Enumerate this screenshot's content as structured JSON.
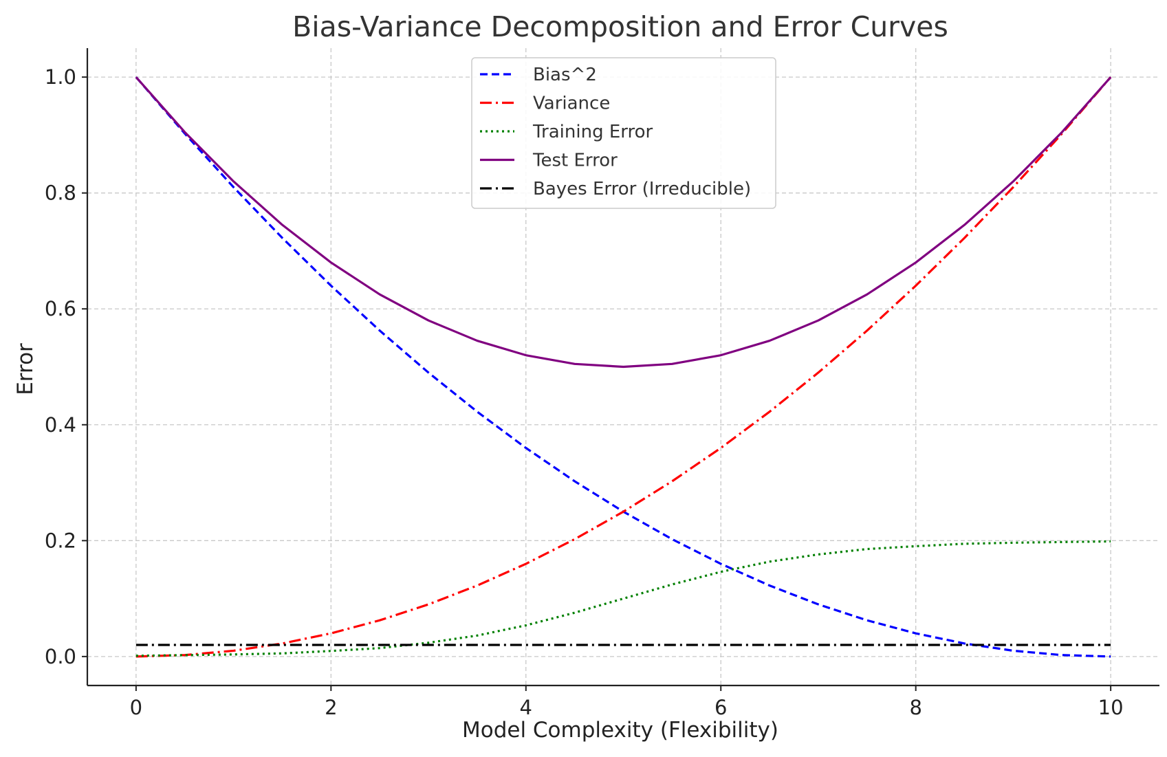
{
  "chart_data": {
    "type": "line",
    "title": "Bias-Variance Decomposition and Error Curves",
    "xlabel": "Model Complexity (Flexibility)",
    "ylabel": "Error",
    "xlim": [
      -0.5,
      10.5
    ],
    "ylim": [
      -0.05,
      1.05
    ],
    "xticks": [
      0,
      2,
      4,
      6,
      8,
      10
    ],
    "yticks": [
      0.0,
      0.2,
      0.4,
      0.6,
      0.8,
      1.0
    ],
    "xtick_labels": [
      "0",
      "2",
      "4",
      "6",
      "8",
      "10"
    ],
    "ytick_labels": [
      "0.0",
      "0.2",
      "0.4",
      "0.6",
      "0.8",
      "1.0"
    ],
    "grid": true,
    "legend_position": "top-center",
    "x": [
      0,
      0.5,
      1,
      1.5,
      2,
      2.5,
      3,
      3.5,
      4,
      4.5,
      5,
      5.5,
      6,
      6.5,
      7,
      7.5,
      8,
      8.5,
      9,
      9.5,
      10
    ],
    "series": [
      {
        "name": "Bias^2",
        "color": "#0000ff",
        "style": "dashed",
        "values": [
          1.0,
          0.9025,
          0.81,
          0.7225,
          0.64,
          0.5625,
          0.49,
          0.4225,
          0.36,
          0.3025,
          0.25,
          0.2025,
          0.16,
          0.1225,
          0.09,
          0.0625,
          0.04,
          0.0225,
          0.01,
          0.0025,
          0.0
        ]
      },
      {
        "name": "Variance",
        "color": "#ff0000",
        "style": "dashdot",
        "values": [
          0.0,
          0.0025,
          0.01,
          0.0225,
          0.04,
          0.0625,
          0.09,
          0.1225,
          0.16,
          0.2025,
          0.25,
          0.3025,
          0.36,
          0.4225,
          0.49,
          0.5625,
          0.64,
          0.7225,
          0.81,
          0.9025,
          1.0
        ]
      },
      {
        "name": "Training Error",
        "color": "#008000",
        "style": "dotted",
        "values": [
          0.0013,
          0.0024,
          0.0036,
          0.0054,
          0.0096,
          0.0145,
          0.0238,
          0.0362,
          0.0538,
          0.0756,
          0.1,
          0.1244,
          0.1462,
          0.1638,
          0.1762,
          0.1855,
          0.1904,
          0.1946,
          0.1964,
          0.1976,
          0.1987
        ]
      },
      {
        "name": "Test Error",
        "color": "#800080",
        "style": "solid",
        "values": [
          1.0,
          0.905,
          0.82,
          0.745,
          0.68,
          0.625,
          0.58,
          0.545,
          0.52,
          0.505,
          0.5,
          0.505,
          0.52,
          0.545,
          0.58,
          0.625,
          0.68,
          0.745,
          0.82,
          0.905,
          1.0
        ]
      },
      {
        "name": "Bayes Error (Irreducible)",
        "color": "#000000",
        "style": "dashdot",
        "values": [
          0.02,
          0.02,
          0.02,
          0.02,
          0.02,
          0.02,
          0.02,
          0.02,
          0.02,
          0.02,
          0.02,
          0.02,
          0.02,
          0.02,
          0.02,
          0.02,
          0.02,
          0.02,
          0.02,
          0.02,
          0.02
        ]
      }
    ]
  }
}
